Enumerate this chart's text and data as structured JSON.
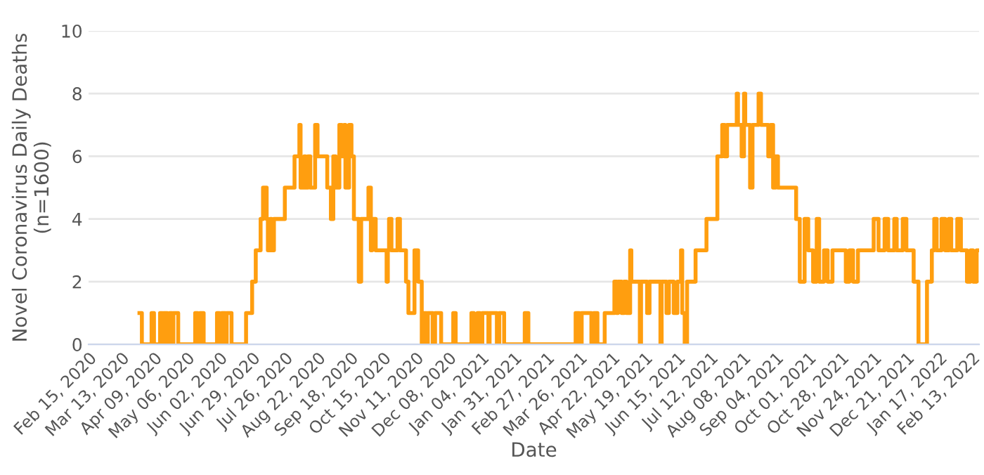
{
  "chart_data": {
    "type": "step",
    "xlabel": "Date",
    "ylabel": "Novel Coronavirus Daily Deaths\n(n=1600)",
    "xlim": [
      "2020-02-15",
      "2022-02-19"
    ],
    "ylim": [
      0,
      10
    ],
    "yticks": [
      0,
      2,
      4,
      6,
      8,
      10
    ],
    "xticks": [
      {
        "value": "2020-02-15",
        "label": "Feb 15, 2020"
      },
      {
        "value": "2020-03-13",
        "label": "Mar 13, 2020"
      },
      {
        "value": "2020-04-09",
        "label": "Apr 09, 2020"
      },
      {
        "value": "2020-05-06",
        "label": "May 06, 2020"
      },
      {
        "value": "2020-06-02",
        "label": "Jun 02, 2020"
      },
      {
        "value": "2020-06-29",
        "label": "Jun 29, 2020"
      },
      {
        "value": "2020-07-26",
        "label": "Jul 26, 2020"
      },
      {
        "value": "2020-08-22",
        "label": "Aug 22, 2020"
      },
      {
        "value": "2020-09-18",
        "label": "Sep 18, 2020"
      },
      {
        "value": "2020-10-15",
        "label": "Oct 15, 2020"
      },
      {
        "value": "2020-11-11",
        "label": "Nov 11, 2020"
      },
      {
        "value": "2020-12-08",
        "label": "Dec 08, 2020"
      },
      {
        "value": "2021-01-04",
        "label": "Jan 04, 2021"
      },
      {
        "value": "2021-01-31",
        "label": "Jan 31, 2021"
      },
      {
        "value": "2021-02-27",
        "label": "Feb 27, 2021"
      },
      {
        "value": "2021-03-26",
        "label": "Mar 26, 2021"
      },
      {
        "value": "2021-04-22",
        "label": "Apr 22, 2021"
      },
      {
        "value": "2021-05-19",
        "label": "May 19, 2021"
      },
      {
        "value": "2021-06-15",
        "label": "Jun 15, 2021"
      },
      {
        "value": "2021-07-12",
        "label": "Jul 12, 2021"
      },
      {
        "value": "2021-08-08",
        "label": "Aug 08, 2021"
      },
      {
        "value": "2021-09-04",
        "label": "Sep 04, 2021"
      },
      {
        "value": "2021-10-01",
        "label": "Oct 01, 2021"
      },
      {
        "value": "2021-10-28",
        "label": "Oct 28, 2021"
      },
      {
        "value": "2021-11-24",
        "label": "Nov 24, 2021"
      },
      {
        "value": "2021-12-21",
        "label": "Dec 21, 2021"
      },
      {
        "value": "2022-01-17",
        "label": "Jan 17, 2022"
      },
      {
        "value": "2022-02-13",
        "label": "Feb 13, 2022"
      }
    ],
    "grid": "y",
    "legend": false,
    "line_style": "solid",
    "marker": "none",
    "series": [
      {
        "color": "#ff9e0f",
        "x": [
          "2020-03-28",
          "2020-03-30",
          "2020-04-07",
          "2020-04-09",
          "2020-04-14",
          "2020-04-16",
          "2020-04-17",
          "2020-04-20",
          "2020-04-22",
          "2020-04-24",
          "2020-04-25",
          "2020-04-29",
          "2020-05-13",
          "2020-05-15",
          "2020-05-17",
          "2020-05-20",
          "2020-05-31",
          "2020-06-02",
          "2020-06-04",
          "2020-06-07",
          "2020-06-08",
          "2020-06-12",
          "2020-06-24",
          "2020-06-29",
          "2020-07-02",
          "2020-07-06",
          "2020-07-08",
          "2020-07-11",
          "2020-07-12",
          "2020-07-14",
          "2020-07-15",
          "2020-07-17",
          "2020-07-26",
          "2020-08-03",
          "2020-08-07",
          "2020-08-08",
          "2020-08-11",
          "2020-08-12",
          "2020-08-14",
          "2020-08-16",
          "2020-08-20",
          "2020-08-22",
          "2020-08-30",
          "2020-09-02",
          "2020-09-04",
          "2020-09-06",
          "2020-09-09",
          "2020-09-11",
          "2020-09-13",
          "2020-09-14",
          "2020-09-17",
          "2020-09-19",
          "2020-09-21",
          "2020-09-25",
          "2020-09-27",
          "2020-10-03",
          "2020-10-05",
          "2020-10-06",
          "2020-10-09",
          "2020-10-18",
          "2020-10-19",
          "2020-10-20",
          "2020-10-22",
          "2020-10-27",
          "2020-10-29",
          "2020-11-03",
          "2020-11-05",
          "2020-11-10",
          "2020-11-13",
          "2020-11-16",
          "2020-11-18",
          "2020-11-20",
          "2020-11-21",
          "2020-11-25",
          "2020-11-27",
          "2020-12-02",
          "2020-12-12",
          "2020-12-14",
          "2020-12-27",
          "2020-12-29",
          "2021-01-01",
          "2021-01-03",
          "2021-01-05",
          "2021-01-10",
          "2021-01-11",
          "2021-01-17",
          "2021-01-19",
          "2021-01-23",
          "2021-02-09",
          "2021-02-12",
          "2021-03-23",
          "2021-03-26",
          "2021-03-28",
          "2021-04-05",
          "2021-04-07",
          "2021-04-10",
          "2021-04-16",
          "2021-04-24",
          "2021-04-26",
          "2021-04-27",
          "2021-04-30",
          "2021-05-02",
          "2021-05-04",
          "2021-05-07",
          "2021-05-08",
          "2021-05-15",
          "2021-05-16",
          "2021-05-21",
          "2021-05-23",
          "2021-06-01",
          "2021-06-02",
          "2021-06-06",
          "2021-06-08",
          "2021-06-12",
          "2021-06-15",
          "2021-06-18",
          "2021-06-19",
          "2021-06-21",
          "2021-06-23",
          "2021-06-30",
          "2021-07-09",
          "2021-07-18",
          "2021-07-22",
          "2021-07-24",
          "2021-07-26",
          "2021-08-03",
          "2021-08-04",
          "2021-08-07",
          "2021-08-09",
          "2021-08-10",
          "2021-08-14",
          "2021-08-16",
          "2021-08-21",
          "2021-08-23",
          "2021-08-29",
          "2021-08-31",
          "2021-09-02",
          "2021-09-04",
          "2021-09-06",
          "2021-09-21",
          "2021-09-24",
          "2021-09-28",
          "2021-10-01",
          "2021-10-05",
          "2021-10-08",
          "2021-10-10",
          "2021-10-14",
          "2021-10-17",
          "2021-10-21",
          "2021-11-01",
          "2021-11-04",
          "2021-11-07",
          "2021-11-11",
          "2021-11-24",
          "2021-11-28",
          "2021-12-03",
          "2021-12-06",
          "2021-12-11",
          "2021-12-13",
          "2021-12-18",
          "2021-12-21",
          "2021-12-27",
          "2021-12-31",
          "2022-01-07",
          "2022-01-11",
          "2022-01-13",
          "2022-01-15",
          "2022-01-19",
          "2022-01-22",
          "2022-01-25",
          "2022-01-27",
          "2022-02-01",
          "2022-02-04",
          "2022-02-09",
          "2022-02-12",
          "2022-02-14",
          "2022-02-17",
          "2022-02-18"
        ],
        "values": [
          1,
          0,
          1,
          0,
          1,
          0,
          1,
          0,
          1,
          0,
          1,
          0,
          1,
          0,
          1,
          0,
          1,
          0,
          1,
          0,
          1,
          0,
          1,
          2,
          3,
          4,
          5,
          4,
          3,
          4,
          3,
          4,
          5,
          6,
          7,
          5,
          6,
          5,
          6,
          5,
          7,
          6,
          5,
          4,
          6,
          5,
          7,
          6,
          7,
          5,
          7,
          6,
          4,
          2,
          4,
          5,
          3,
          4,
          3,
          2,
          3,
          4,
          3,
          4,
          3,
          2,
          1,
          3,
          2,
          0,
          1,
          0,
          1,
          0,
          1,
          0,
          1,
          0,
          1,
          0,
          1,
          0,
          1,
          0,
          1,
          0,
          1,
          0,
          1,
          0,
          1,
          0,
          1,
          0,
          1,
          0,
          1,
          2,
          1,
          2,
          1,
          2,
          1,
          3,
          2,
          0,
          2,
          1,
          2,
          0,
          2,
          1,
          2,
          1,
          2,
          3,
          1,
          0,
          2,
          3,
          4,
          6,
          7,
          6,
          7,
          8,
          7,
          6,
          8,
          7,
          5,
          7,
          8,
          7,
          6,
          7,
          5,
          6,
          5,
          4,
          2,
          4,
          3,
          2,
          4,
          2,
          3,
          2,
          3,
          2,
          3,
          2,
          3,
          4,
          3,
          4,
          3,
          4,
          3,
          4,
          3,
          2,
          0,
          2,
          3,
          4,
          3,
          4,
          3,
          4,
          3,
          4,
          3,
          2,
          3,
          2,
          3,
          3
        ]
      }
    ]
  }
}
